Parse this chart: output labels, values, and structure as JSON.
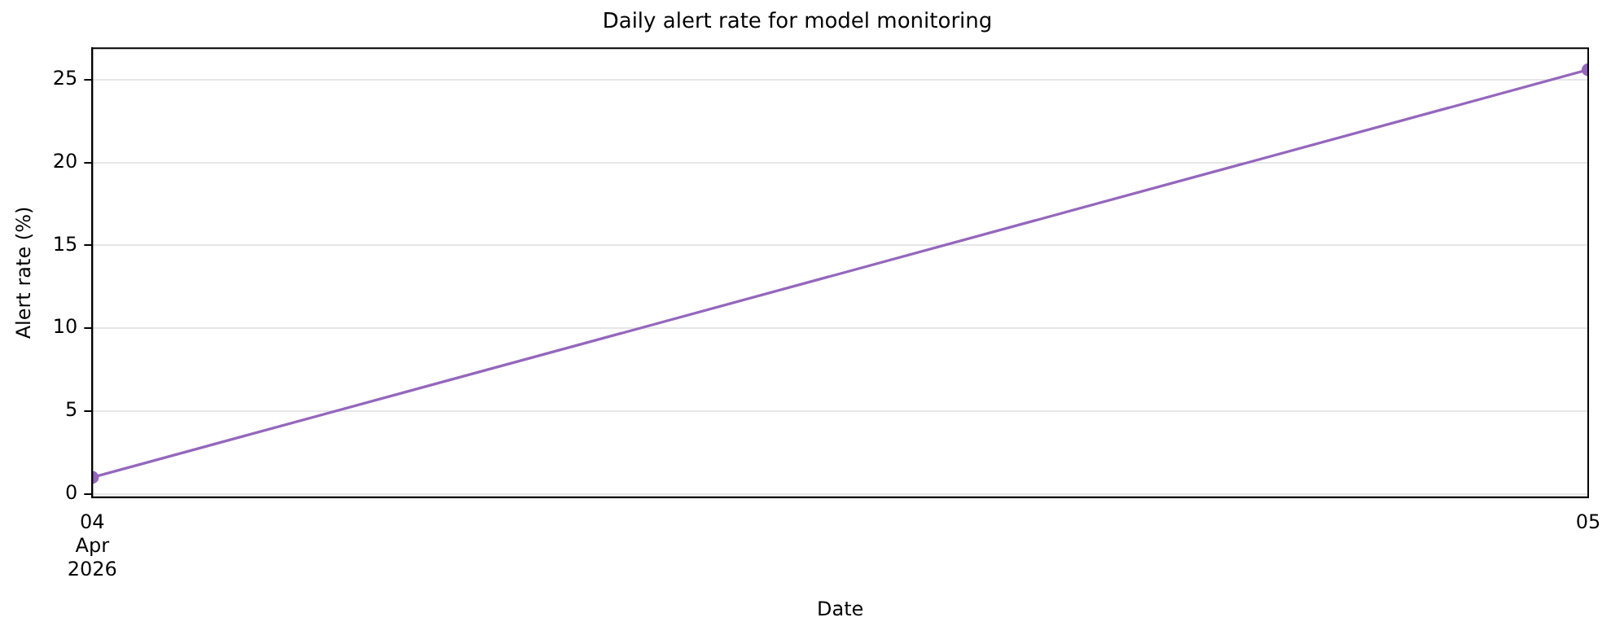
{
  "chart_data": {
    "type": "line",
    "title": "Daily alert rate for model monitoring",
    "xlabel": "Date",
    "ylabel": "Alert rate (%)",
    "x": [
      "2026-04-04",
      "2026-04-05"
    ],
    "series": [
      {
        "color": "#9467bd",
        "values": [
          1.0,
          25.6
        ]
      }
    ],
    "xlim": [
      "2026-04-04",
      "2026-04-05"
    ],
    "xticks": [
      {
        "value": "2026-04-04",
        "label": "04\nApr\n2026"
      },
      {
        "value": "2026-04-05",
        "label": "05"
      }
    ],
    "ylim": [
      -0.2,
      26.9
    ],
    "yticks": [
      0,
      5,
      10,
      15,
      20,
      25
    ],
    "grid": "y",
    "legend": false,
    "marker": "circle",
    "line_style": "solid"
  }
}
